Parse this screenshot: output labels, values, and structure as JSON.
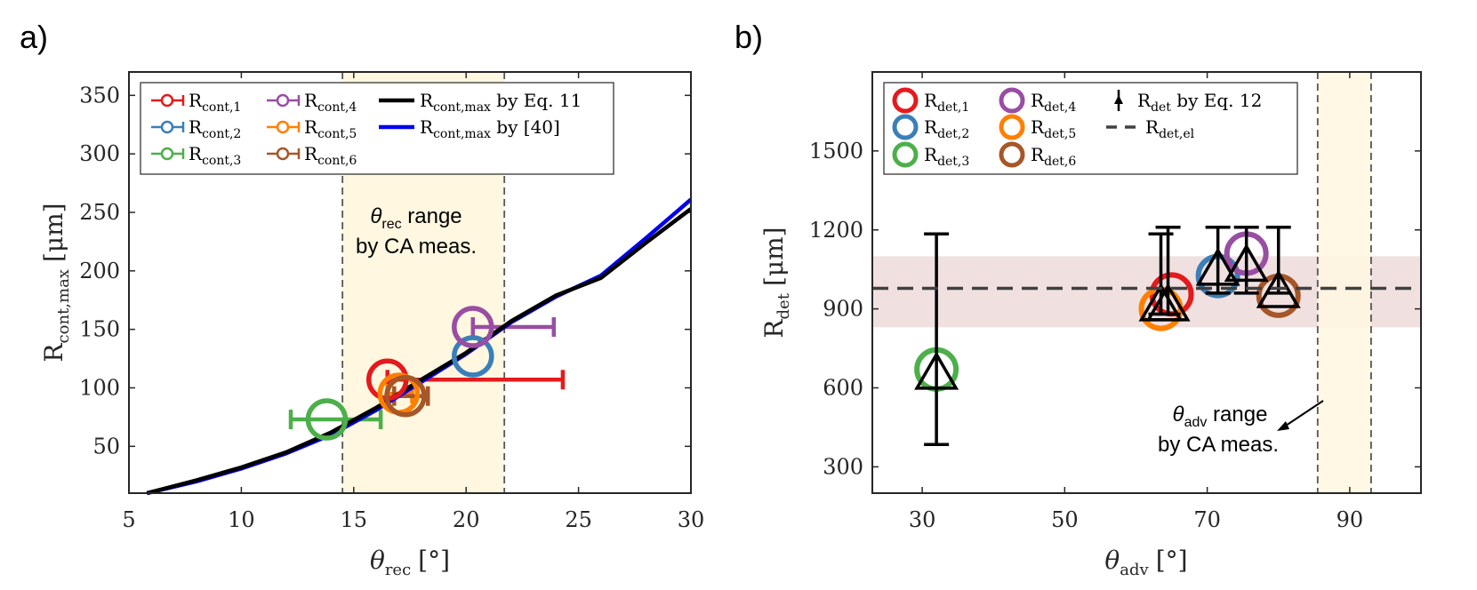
{
  "panels": [
    {
      "label": "a)",
      "xlabel": "θ",
      "xlabel_sub": "rec",
      "xlabel_unit": "[°]",
      "ylabel": "R",
      "ylabel_sub": "cont,max",
      "ylabel_unit": "[μm]",
      "xlim": [
        5,
        30
      ],
      "ylim": [
        10,
        370
      ],
      "xticks": [
        "5",
        "10",
        "15",
        "20",
        "25",
        "30"
      ],
      "yticks": [
        "50",
        "100",
        "150",
        "200",
        "250",
        "300",
        "350"
      ],
      "annotation": {
        "line1_symbol": "θ",
        "line1_sub": "rec",
        "line1_rest": " range",
        "line2": "by CA meas."
      },
      "legend": [
        {
          "main": "R",
          "sub": "cont,1",
          "rest": ""
        },
        {
          "main": "R",
          "sub": "cont,2",
          "rest": ""
        },
        {
          "main": "R",
          "sub": "cont,3",
          "rest": ""
        },
        {
          "main": "R",
          "sub": "cont,4",
          "rest": ""
        },
        {
          "main": "R",
          "sub": "cont,5",
          "rest": ""
        },
        {
          "main": "R",
          "sub": "cont,6",
          "rest": ""
        },
        {
          "main": "R",
          "sub": "cont,max",
          "rest": " by Eq. 11"
        },
        {
          "main": "R",
          "sub": "cont,max",
          "rest": " by [40]"
        }
      ]
    },
    {
      "label": "b)",
      "xlabel": "θ",
      "xlabel_sub": "adv",
      "xlabel_unit": "[°]",
      "ylabel": "R",
      "ylabel_sub": "det",
      "ylabel_unit": "[μm]",
      "xlim": [
        23,
        100
      ],
      "ylim": [
        200,
        1800
      ],
      "xticks": [
        "30",
        "50",
        "70",
        "90"
      ],
      "yticks": [
        "300",
        "600",
        "900",
        "1200",
        "1500"
      ],
      "annotation": {
        "line1_symbol": "θ",
        "line1_sub": "adv",
        "line1_rest": " range",
        "line2": "by CA meas."
      },
      "legend": [
        {
          "main": "R",
          "sub": "det,1",
          "rest": ""
        },
        {
          "main": "R",
          "sub": "det,2",
          "rest": ""
        },
        {
          "main": "R",
          "sub": "det,3",
          "rest": ""
        },
        {
          "main": "R",
          "sub": "det,4",
          "rest": ""
        },
        {
          "main": "R",
          "sub": "det,5",
          "rest": ""
        },
        {
          "main": "R",
          "sub": "det,6",
          "rest": ""
        },
        {
          "main": "R",
          "sub": "det",
          "rest": " by Eq. 12"
        },
        {
          "main": "R",
          "sub": "det,el",
          "rest": ""
        }
      ]
    }
  ],
  "colors": {
    "c1": "#e41a1c",
    "c2": "#3a7fb8",
    "c3": "#4daf4a",
    "c4": "#984ea3",
    "c5": "#ff7f00",
    "c6": "#a65628",
    "band": "#fff7e0",
    "pink": "#e8d0d0"
  },
  "chart_data": [
    {
      "type": "scatter",
      "xlim": [
        5,
        30
      ],
      "ylim": [
        10,
        370
      ],
      "shaded_x_range": [
        14.5,
        21.7
      ],
      "series": [
        {
          "name": "Rcont,1",
          "x": 16.5,
          "y": 107,
          "xerr": [
            16.5,
            24.3
          ],
          "color": "c1"
        },
        {
          "name": "Rcont,2",
          "x": 20.3,
          "y": 127,
          "xerr": [
            20.3,
            20.3
          ],
          "color": "c2"
        },
        {
          "name": "Rcont,3",
          "x": 13.8,
          "y": 73,
          "xerr": [
            12.2,
            16.2
          ],
          "color": "c3"
        },
        {
          "name": "Rcont,4",
          "x": 20.3,
          "y": 152,
          "xerr": [
            20.3,
            23.9
          ],
          "color": "c4"
        },
        {
          "name": "Rcont,5",
          "x": 17.0,
          "y": 95,
          "xerr": [
            16.5,
            17.6
          ],
          "color": "c5"
        },
        {
          "name": "Rcont,6",
          "x": 17.3,
          "y": 93,
          "xerr": [
            16.8,
            18.3
          ],
          "color": "c6"
        }
      ],
      "lines": [
        {
          "name": "Rcont,max by Eq. 11",
          "color": "#000000",
          "x": [
            5.8,
            8,
            10,
            12,
            14,
            16,
            18,
            20,
            22,
            24,
            26,
            28,
            30
          ],
          "y": [
            10,
            21,
            32,
            45,
            62,
            83,
            107,
            130,
            157,
            179,
            194,
            224,
            253
          ]
        },
        {
          "name": "Rcont,max by [40]",
          "color": "#0000ee",
          "x": [
            5.8,
            8,
            10,
            12,
            14,
            16,
            18,
            20,
            22,
            24,
            26,
            28,
            30
          ],
          "y": [
            10,
            20,
            31,
            44,
            60,
            81,
            105,
            129,
            156,
            178,
            196,
            228,
            261
          ]
        }
      ]
    },
    {
      "type": "scatter",
      "xlim": [
        23,
        100
      ],
      "ylim": [
        200,
        1800
      ],
      "shaded_x_range": [
        85.5,
        93
      ],
      "reference_band": [
        830,
        1100
      ],
      "reference_line": {
        "name": "Rdet,el",
        "y": 978
      },
      "series": [
        {
          "name": "Rdet,1",
          "x": 65,
          "y": 955,
          "color": "c1"
        },
        {
          "name": "Rdet,2",
          "x": 71.5,
          "y": 1025,
          "color": "c2"
        },
        {
          "name": "Rdet,3",
          "x": 32,
          "y": 670,
          "color": "c3"
        },
        {
          "name": "Rdet,4",
          "x": 75.5,
          "y": 1110,
          "color": "c4"
        },
        {
          "name": "Rdet,5",
          "x": 63.5,
          "y": 900,
          "color": "c5"
        },
        {
          "name": "Rdet,6",
          "x": 80,
          "y": 950,
          "color": "c6"
        }
      ],
      "eq12": {
        "name": "Rdet by Eq. 12",
        "points": [
          {
            "x": 32,
            "y": 650,
            "lo": 385,
            "hi": 1185
          },
          {
            "x": 63.5,
            "y": 910,
            "lo": 880,
            "hi": 1185
          },
          {
            "x": 64.5,
            "y": 910,
            "lo": 880,
            "hi": 1210
          },
          {
            "x": 71.5,
            "y": 1045,
            "lo": 960,
            "hi": 1210
          },
          {
            "x": 75.5,
            "y": 1060,
            "lo": 960,
            "hi": 1210
          },
          {
            "x": 80,
            "y": 960,
            "lo": 960,
            "hi": 1210
          }
        ]
      }
    }
  ]
}
